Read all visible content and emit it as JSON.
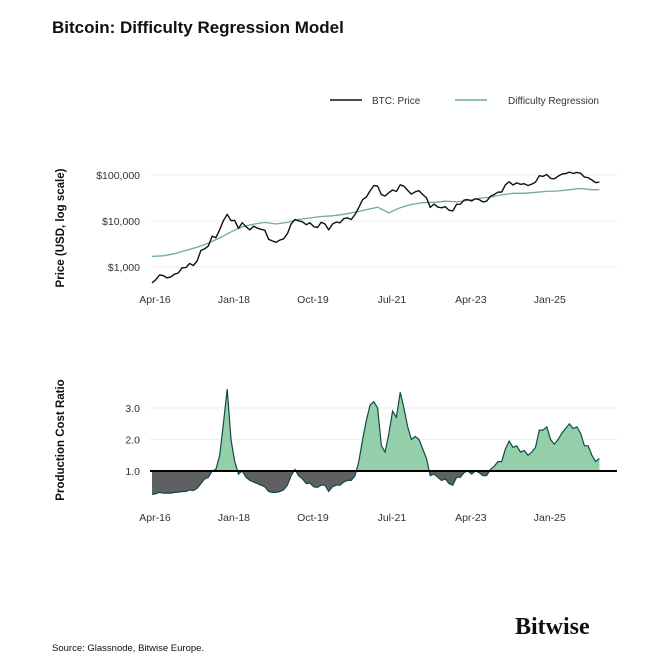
{
  "title": "Bitcoin: Difficulty Regression Model",
  "source": "Source: Glassnode, Bitwise Europe.",
  "logo": "Bitwise",
  "colors": {
    "price": "#111111",
    "model": "#6fa9a3",
    "above": "#93d0aa",
    "below": "#5f6062",
    "ratio_line": "#0f4a4a",
    "baseline": "#000000"
  },
  "chart_data": [
    {
      "type": "line",
      "ylabel": "Price (USD, log scale)",
      "yscale": "log",
      "ylim": [
        300,
        200000
      ],
      "yticks": [
        {
          "value": 1000,
          "label": "$1,000"
        },
        {
          "value": 10000,
          "label": "$10,000"
        },
        {
          "value": 100000,
          "label": "$100,000"
        }
      ],
      "xticks": [
        {
          "date": "2016-04",
          "label": "Apr-16"
        },
        {
          "date": "2018-01",
          "label": "Jan-18"
        },
        {
          "date": "2019-10",
          "label": "Oct-19"
        },
        {
          "date": "2021-07",
          "label": "Jul-21"
        },
        {
          "date": "2023-04",
          "label": "Apr-23"
        },
        {
          "date": "2025-01",
          "label": "Jan-25"
        }
      ],
      "grid": true,
      "legend": "top-right",
      "series": [
        {
          "name": "BTC: Price",
          "start": "2016-04",
          "frequency": "monthly",
          "values": [
            450,
            530,
            670,
            650,
            580,
            610,
            700,
            740,
            960,
            970,
            1190,
            1080,
            1350,
            2300,
            2480,
            2870,
            4700,
            4340,
            6470,
            10200,
            14000,
            10200,
            10300,
            6900,
            9200,
            7500,
            6400,
            7700,
            7000,
            6600,
            6300,
            4000,
            3700,
            3450,
            3850,
            4100,
            5300,
            8600,
            10800,
            10100,
            9600,
            8300,
            9200,
            7550,
            7200,
            9350,
            8600,
            6400,
            8600,
            9450,
            9150,
            11300,
            11650,
            10780,
            13800,
            19700,
            29000,
            33100,
            45200,
            58800,
            57700,
            37300,
            35000,
            41500,
            47100,
            43800,
            61300,
            57000,
            46300,
            38500,
            43200,
            45500,
            37700,
            31800,
            19800,
            23300,
            20050,
            19400,
            20500,
            17200,
            16550,
            23100,
            23150,
            28500,
            29250,
            27200,
            30500,
            29200,
            26000,
            27000,
            34500,
            37700,
            42300,
            42600,
            61200,
            71300,
            60700,
            67500,
            62700,
            64600,
            59000,
            63300,
            70200,
            96400,
            93400,
            102400,
            84400,
            82500,
            94200,
            104600,
            107100,
            115700,
            108200,
            114000,
            109500,
            90000,
            87500,
            78000,
            68000,
            70000
          ]
        },
        {
          "name": "Difficulty Regression",
          "points": [
            [
              "2016-04",
              1700
            ],
            [
              "2016-07",
              1750
            ],
            [
              "2016-10",
              1950
            ],
            [
              "2017-01",
              2300
            ],
            [
              "2017-04",
              2700
            ],
            [
              "2017-07",
              3300
            ],
            [
              "2017-10",
              4300
            ],
            [
              "2018-01",
              5800
            ],
            [
              "2018-04",
              7500
            ],
            [
              "2018-07",
              8500
            ],
            [
              "2018-10",
              9300
            ],
            [
              "2019-01",
              8600
            ],
            [
              "2019-04",
              9300
            ],
            [
              "2019-07",
              10800
            ],
            [
              "2019-10",
              11600
            ],
            [
              "2020-01",
              12500
            ],
            [
              "2020-04",
              13000
            ],
            [
              "2020-07",
              14000
            ],
            [
              "2020-10",
              15500
            ],
            [
              "2021-01",
              17500
            ],
            [
              "2021-04",
              20000
            ],
            [
              "2021-07",
              15000
            ],
            [
              "2021-10",
              19500
            ],
            [
              "2022-01",
              23000
            ],
            [
              "2022-04",
              25000
            ],
            [
              "2022-07",
              25500
            ],
            [
              "2022-10",
              27000
            ],
            [
              "2023-01",
              26000
            ],
            [
              "2023-04",
              28000
            ],
            [
              "2023-07",
              31000
            ],
            [
              "2023-10",
              33000
            ],
            [
              "2024-01",
              37000
            ],
            [
              "2024-04",
              40000
            ],
            [
              "2024-07",
              40000
            ],
            [
              "2024-10",
              42000
            ],
            [
              "2025-01",
              44000
            ],
            [
              "2025-04",
              45000
            ],
            [
              "2025-07",
              48000
            ],
            [
              "2025-10",
              51000
            ],
            [
              "2026-01",
              48000
            ],
            [
              "2026-03",
              48000
            ]
          ]
        }
      ]
    },
    {
      "type": "area",
      "ylabel": "Production Cost Ratio",
      "ylim": [
        0.2,
        4.0
      ],
      "baseline": 1.0,
      "yticks": [
        {
          "value": 1,
          "label": "1.0"
        },
        {
          "value": 2,
          "label": "2.0"
        },
        {
          "value": 3,
          "label": "3.0"
        }
      ],
      "xticks": [
        {
          "date": "2016-04",
          "label": "Apr-16"
        },
        {
          "date": "2018-01",
          "label": "Jan-18"
        },
        {
          "date": "2019-10",
          "label": "Oct-19"
        },
        {
          "date": "2021-07",
          "label": "Jul-21"
        },
        {
          "date": "2023-04",
          "label": "Apr-23"
        },
        {
          "date": "2025-01",
          "label": "Jan-25"
        }
      ],
      "grid": true,
      "series": [
        {
          "start": "2016-04",
          "frequency": "monthly",
          "values": [
            0.25,
            0.28,
            0.32,
            0.3,
            0.3,
            0.3,
            0.32,
            0.33,
            0.35,
            0.35,
            0.4,
            0.38,
            0.45,
            0.6,
            0.75,
            0.8,
            1.0,
            1.05,
            1.5,
            2.5,
            3.6,
            2.0,
            1.3,
            0.9,
            1.0,
            0.8,
            0.7,
            0.65,
            0.6,
            0.55,
            0.5,
            0.35,
            0.32,
            0.32,
            0.35,
            0.4,
            0.55,
            0.85,
            1.05,
            0.85,
            0.75,
            0.6,
            0.62,
            0.5,
            0.48,
            0.55,
            0.55,
            0.35,
            0.5,
            0.55,
            0.55,
            0.65,
            0.7,
            0.7,
            0.85,
            1.3,
            2.0,
            2.6,
            3.1,
            3.2,
            3.0,
            1.8,
            1.6,
            2.2,
            2.9,
            2.7,
            3.5,
            3.0,
            2.4,
            2.0,
            2.1,
            2.0,
            1.7,
            1.4,
            0.85,
            0.9,
            0.8,
            0.7,
            0.75,
            0.6,
            0.55,
            0.8,
            0.8,
            0.95,
            1.0,
            0.9,
            1.0,
            0.95,
            0.85,
            0.85,
            1.05,
            1.15,
            1.3,
            1.3,
            1.7,
            1.95,
            1.75,
            1.8,
            1.6,
            1.65,
            1.5,
            1.6,
            1.75,
            2.3,
            2.3,
            2.4,
            2.0,
            1.85,
            2.0,
            2.2,
            2.35,
            2.5,
            2.35,
            2.4,
            2.2,
            1.8,
            1.8,
            1.5,
            1.3,
            1.4
          ]
        }
      ]
    }
  ]
}
